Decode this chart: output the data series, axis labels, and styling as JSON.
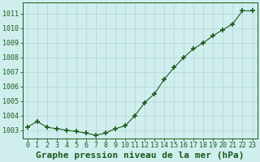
{
  "x": [
    0,
    1,
    2,
    3,
    4,
    5,
    6,
    7,
    8,
    9,
    10,
    11,
    12,
    13,
    14,
    15,
    16,
    17,
    18,
    19,
    20,
    21,
    22,
    23
  ],
  "y": [
    1003.2,
    1003.6,
    1003.2,
    1003.1,
    1003.0,
    1002.9,
    1002.8,
    1002.65,
    1002.8,
    1003.1,
    1003.3,
    1004.0,
    1004.9,
    1005.5,
    1006.5,
    1007.3,
    1008.0,
    1008.6,
    1009.0,
    1009.5,
    1009.9,
    1010.3,
    1011.2,
    1011.2
  ],
  "line_color": "#1a5c1a",
  "marker": "+",
  "marker_size": 4,
  "marker_linewidth": 1.2,
  "background_color": "#d0eeee",
  "grid_color": "#b8d8d8",
  "xlabel": "Graphe pression niveau de la mer (hPa)",
  "xlabel_color": "#1a5c1a",
  "ylabel_ticks": [
    1003,
    1004,
    1005,
    1006,
    1007,
    1008,
    1009,
    1010,
    1011
  ],
  "ylim": [
    1002.45,
    1011.75
  ],
  "xlim": [
    -0.5,
    23.5
  ],
  "xtick_labels": [
    "0",
    "1",
    "2",
    "3",
    "4",
    "5",
    "6",
    "7",
    "8",
    "9",
    "10",
    "11",
    "12",
    "13",
    "14",
    "15",
    "16",
    "17",
    "18",
    "19",
    "20",
    "21",
    "22",
    "23"
  ],
  "tick_fontsize": 6.0,
  "xlabel_fontsize": 8.0
}
